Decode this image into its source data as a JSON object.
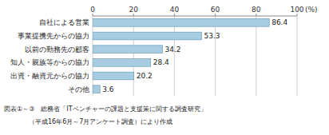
{
  "chart_data": {
    "type": "bar",
    "orientation": "horizontal",
    "categories": [
      "その他",
      "出資・融資元からの協力",
      "知人・親族等からの協力",
      "以前の勤務先の顧客",
      "事業提携先からの協力",
      "自社による営業"
    ],
    "values": [
      3.6,
      20.2,
      28.4,
      34.2,
      53.3,
      86.4
    ],
    "color": "#a8cce0",
    "xlim": [
      0,
      100
    ],
    "xticks": [
      0,
      20,
      40,
      60,
      80,
      100
    ],
    "xlabel": "(%)",
    "grid": true,
    "data_labels": true,
    "annotations": [
      "図表①～③　総務省「ITベンチャーの課題と支援策に関する調査研究」",
      "（平成16年6月～7月アンケート調査）により作成"
    ]
  }
}
